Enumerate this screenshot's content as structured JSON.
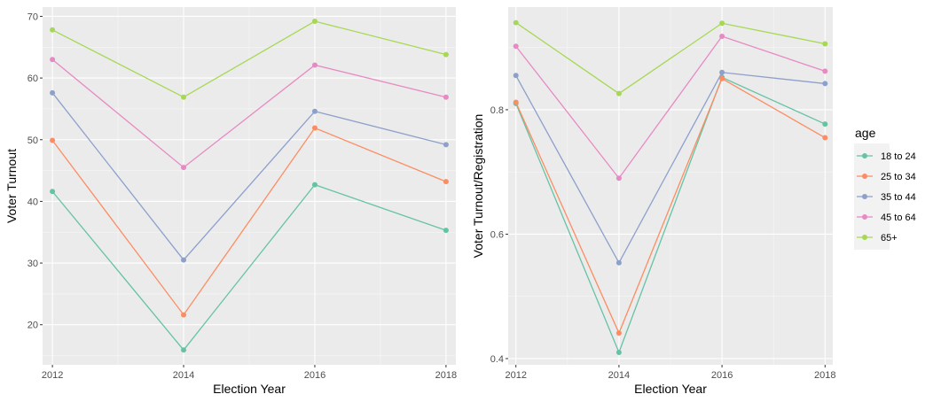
{
  "chart_data": [
    {
      "type": "line",
      "title": "",
      "xlabel": "Election Year",
      "ylabel": "Voter Turnout",
      "x": [
        2012,
        2014,
        2016,
        2018
      ],
      "xticks": [
        "2012",
        "2014",
        "2016",
        "2018"
      ],
      "xlim": [
        2011.85,
        2018.15
      ],
      "ylim": [
        13.5,
        71.5
      ],
      "yticks": [
        20,
        30,
        40,
        50,
        60,
        70
      ],
      "ytick_labels": [
        "20",
        "30",
        "40",
        "50",
        "60",
        "70"
      ],
      "grid": true,
      "series": [
        {
          "name": "18 to 24",
          "values": [
            41.6,
            15.9,
            42.7,
            35.3
          ]
        },
        {
          "name": "25 to 34",
          "values": [
            49.9,
            21.6,
            51.9,
            43.2
          ]
        },
        {
          "name": "35 to 44",
          "values": [
            57.6,
            30.5,
            54.6,
            49.2
          ]
        },
        {
          "name": "45 to 64",
          "values": [
            63.0,
            45.5,
            62.1,
            56.9
          ]
        },
        {
          "name": "65+",
          "values": [
            67.8,
            56.9,
            69.2,
            63.8
          ]
        }
      ]
    },
    {
      "type": "line",
      "title": "",
      "xlabel": "Election Year",
      "ylabel": "Voter Turnout/Registration",
      "x": [
        2012,
        2014,
        2016,
        2018
      ],
      "xticks": [
        "2012",
        "2014",
        "2016",
        "2018"
      ],
      "xlim": [
        2011.85,
        2018.15
      ],
      "ylim": [
        0.39,
        0.965
      ],
      "yticks": [
        0.4,
        0.6,
        0.8
      ],
      "ytick_labels": [
        "0.4",
        "0.6",
        "0.8"
      ],
      "grid": true,
      "series": [
        {
          "name": "18 to 24",
          "values": [
            0.81,
            0.41,
            0.852,
            0.777
          ]
        },
        {
          "name": "25 to 34",
          "values": [
            0.812,
            0.441,
            0.85,
            0.755
          ]
        },
        {
          "name": "35 to 44",
          "values": [
            0.855,
            0.554,
            0.86,
            0.842
          ]
        },
        {
          "name": "45 to 64",
          "values": [
            0.902,
            0.69,
            0.918,
            0.862
          ]
        },
        {
          "name": "65+",
          "values": [
            0.94,
            0.826,
            0.939,
            0.906
          ]
        }
      ]
    }
  ],
  "legend": {
    "title": "age",
    "position": "right",
    "items": [
      "18 to 24",
      "25 to 34",
      "35 to 44",
      "45 to 64",
      "65+"
    ]
  },
  "colors": {
    "18 to 24": "#66c2a5",
    "25 to 34": "#fc8d62",
    "35 to 44": "#8da0cb",
    "45 to 64": "#e78ac3",
    "65+": "#a6d854",
    "panel_background": "#ebebeb",
    "grid": "#ffffff"
  }
}
